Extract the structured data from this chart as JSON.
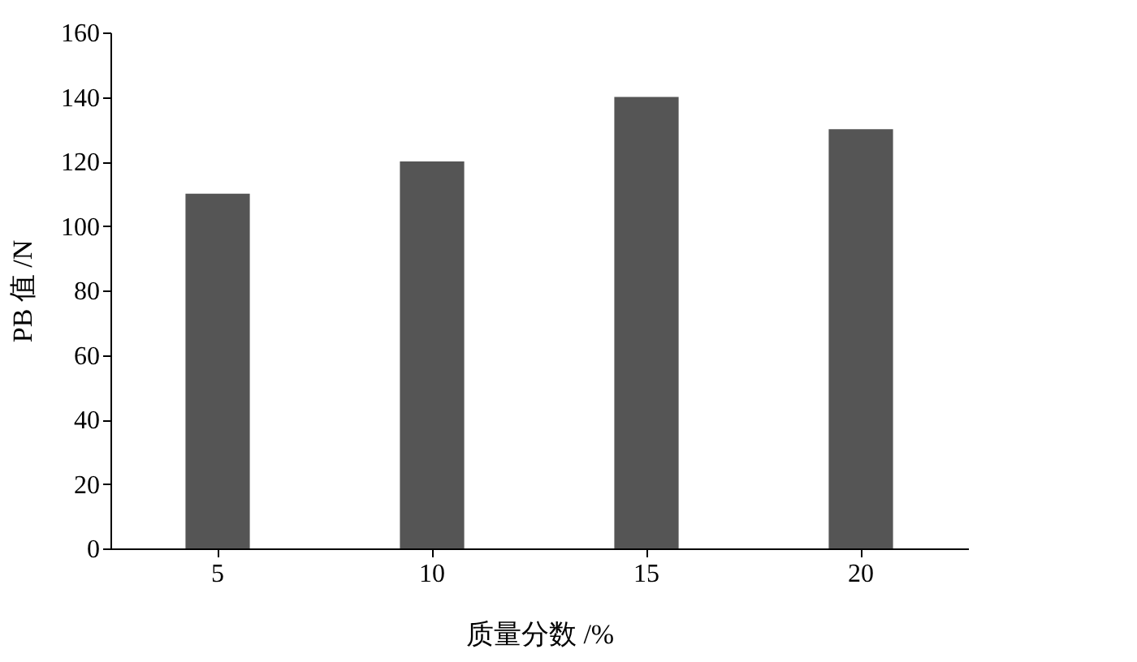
{
  "chart_data": {
    "type": "bar",
    "xlabel": "质量分数 /%",
    "ylabel": "PB 值 /N",
    "categories": [
      "5",
      "10",
      "15",
      "20"
    ],
    "values": [
      110,
      120,
      140,
      130
    ],
    "color": "#555555",
    "ylim": [
      0,
      160
    ],
    "yticks": [
      0,
      20,
      40,
      60,
      80,
      100,
      120,
      140,
      160
    ],
    "grid": false
  }
}
